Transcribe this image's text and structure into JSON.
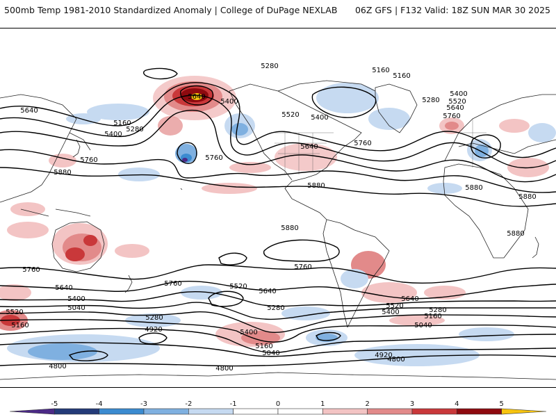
{
  "header": {
    "title_left": "500mb Temp 1981-2010 Standardized Anomaly | College of DuPage NEXLAB",
    "title_right": "06Z GFS | F132 Valid: 18Z SUN MAR 30 2025"
  },
  "colors": {
    "contour": "#000000",
    "coastline": "#222222",
    "colorbar_bins": [
      "#4b2a86",
      "#233a78",
      "#3b8bd0",
      "#7fb0e0",
      "#c6daf1",
      "#ffffff",
      "#ffffff",
      "#f3c4c4",
      "#e28a8a",
      "#c9383a",
      "#8e0a0f",
      "#f7c40f"
    ]
  },
  "colorbar": {
    "labels": [
      "-5",
      "-4",
      "-3",
      "-2",
      "-1",
      "0",
      "1",
      "2",
      "3",
      "4",
      "5"
    ]
  },
  "contour_labels": [
    {
      "text": "5280"
    },
    {
      "text": "5160"
    },
    {
      "text": "5160"
    },
    {
      "text": "5640"
    },
    {
      "text": "5400"
    },
    {
      "text": "5160"
    },
    {
      "text": "5400"
    },
    {
      "text": "5280"
    },
    {
      "text": "5640"
    },
    {
      "text": "5400"
    },
    {
      "text": "5520"
    },
    {
      "text": "5400"
    },
    {
      "text": "5280"
    },
    {
      "text": "5520"
    },
    {
      "text": "5640"
    },
    {
      "text": "5760"
    },
    {
      "text": "5640"
    },
    {
      "text": "5760"
    },
    {
      "text": "5760"
    },
    {
      "text": "5880"
    },
    {
      "text": "5880"
    },
    {
      "text": "5880"
    },
    {
      "text": "5880"
    },
    {
      "text": "5880"
    },
    {
      "text": "5880"
    },
    {
      "text": "5760"
    },
    {
      "text": "5760"
    },
    {
      "text": "5760"
    },
    {
      "text": "5760"
    },
    {
      "text": "5640"
    },
    {
      "text": "5520"
    },
    {
      "text": "5640"
    },
    {
      "text": "5400"
    },
    {
      "text": "5040"
    },
    {
      "text": "5280"
    },
    {
      "text": "5520"
    },
    {
      "text": "5160"
    },
    {
      "text": "4920"
    },
    {
      "text": "5280"
    },
    {
      "text": "5640"
    },
    {
      "text": "5520"
    },
    {
      "text": "5400"
    },
    {
      "text": "5280"
    },
    {
      "text": "5160"
    },
    {
      "text": "5040"
    },
    {
      "text": "5400"
    },
    {
      "text": "5160"
    },
    {
      "text": "5040"
    },
    {
      "text": "4920"
    },
    {
      "text": "4800"
    },
    {
      "text": "4800"
    },
    {
      "text": "4800"
    }
  ]
}
